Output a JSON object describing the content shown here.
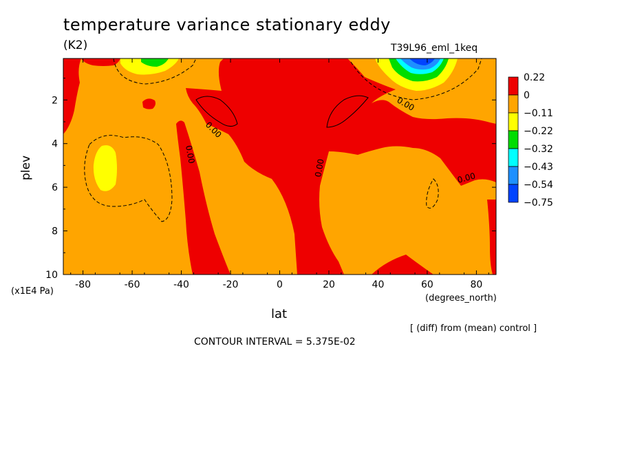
{
  "chart_data": {
    "type": "contour",
    "title": "temperature variance stationary eddy",
    "units": "(K2)",
    "run_label": "T39L96_eml_1keq",
    "xlabel": "lat",
    "x_units": "(degrees_north)",
    "ylabel": "plev",
    "y_units": "(x1E4 Pa)",
    "xlim": [
      -88,
      88
    ],
    "ylim": [
      0.1,
      10
    ],
    "y_inverted": true,
    "x_ticks": [
      "-80",
      "-60",
      "-40",
      "-20",
      "0",
      "20",
      "40",
      "60",
      "80"
    ],
    "x_tick_values": [
      -80,
      -60,
      -40,
      -20,
      0,
      20,
      40,
      60,
      80
    ],
    "y_ticks": [
      "2",
      "4",
      "6",
      "8",
      "10"
    ],
    "y_tick_values": [
      2,
      4,
      6,
      8,
      10
    ],
    "note": "[ (diff) from (mean) control ]",
    "contour_interval": "CONTOUR INTERVAL = 5.375E-02",
    "zero_contour_label": "0.00",
    "colorbar": {
      "labels": [
        "0.22",
        "0",
        "−0.11",
        "−0.22",
        "−0.32",
        "−0.43",
        "−0.54",
        "−0.75"
      ],
      "colors": [
        "#ee0000",
        "#ffa500",
        "#ffff00",
        "#00dd00",
        "#00ffff",
        "#1e90ff",
        "#0044ff"
      ]
    },
    "regions": [
      {
        "name": "background",
        "value_class": "0 to -0.11",
        "color": "#ffa500"
      },
      {
        "name": "south-polar-positive",
        "lat": [
          -88,
          -83
        ],
        "plev": [
          0.1,
          3
        ],
        "value_class": "0 to 0.22",
        "color": "#ee0000"
      },
      {
        "name": "south-upper-positive",
        "lat": [
          -80,
          -70
        ],
        "plev": [
          0.1,
          1
        ],
        "value_class": "0 to 0.22",
        "color": "#ee0000"
      },
      {
        "name": "south-tongue-positive",
        "lat": [
          -42,
          -26
        ],
        "plev": [
          3,
          10
        ],
        "value_class": "0 to 0.22",
        "color": "#ee0000"
      },
      {
        "name": "tropical-positive",
        "lat": [
          -25,
          27
        ],
        "plev": [
          0.1,
          10
        ],
        "value_class": "0 to 0.22",
        "color": "#ee0000"
      },
      {
        "name": "north-midlat-positive",
        "lat": [
          40,
          88
        ],
        "plev": [
          2,
          6
        ],
        "value_class": "0 to 0.22",
        "color": "#ee0000"
      },
      {
        "name": "north-polar-surface-positive",
        "lat": [
          83,
          88
        ],
        "plev": [
          6,
          10
        ],
        "value_class": "0 to 0.22",
        "color": "#ee0000"
      },
      {
        "name": "south-upper-minimum",
        "lat": [
          -65,
          -50
        ],
        "plev": [
          0.1,
          0.8
        ],
        "value_class": "-0.11 to -0.32",
        "color": "#ffff00"
      },
      {
        "name": "south-midlevel-minimum",
        "lat": [
          -76,
          -68
        ],
        "plev": [
          4.2,
          6.2
        ],
        "value_class": "-0.11 to -0.22",
        "color": "#ffff00"
      },
      {
        "name": "north-upper-minimum",
        "lat": [
          45,
          73
        ],
        "plev": [
          0.1,
          1.6
        ],
        "value_class": "-0.11 to -0.75",
        "color": "#0044ff"
      }
    ]
  }
}
